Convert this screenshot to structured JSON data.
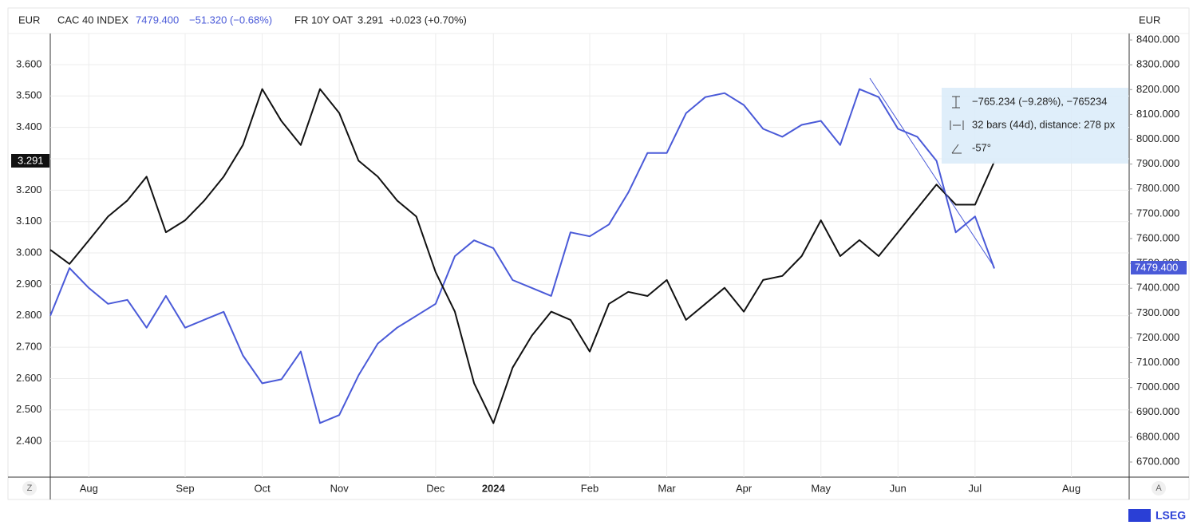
{
  "chart_data": {
    "type": "line",
    "y_unit": "EUR",
    "y2_unit": "EUR",
    "categories": [
      null,
      null,
      "Aug",
      null,
      null,
      null,
      null,
      "Sep",
      null,
      null,
      null,
      "Oct",
      null,
      null,
      null,
      "Nov",
      null,
      null,
      null,
      null,
      "Dec",
      null,
      null,
      "2024",
      null,
      null,
      null,
      null,
      "Feb",
      null,
      null,
      null,
      "Mar",
      null,
      null,
      null,
      "Apr",
      null,
      null,
      null,
      "May",
      null,
      null,
      null,
      "Jun",
      null,
      null,
      null,
      "Jul",
      null,
      null,
      null,
      null,
      "Aug",
      null,
      null,
      null
    ],
    "series": [
      {
        "name": "CAC 40 INDEX",
        "color": "#4a5ad8",
        "axis": "y2",
        "last_label": "7479.400",
        "change_label": "−51.320 (−0.68%)",
        "values": [
          7289,
          7481,
          7401,
          7337,
          7353,
          7241,
          7369,
          7241,
          7273,
          7305,
          7129,
          7017,
          7033,
          7145,
          6857,
          6889,
          7049,
          7177,
          7241,
          7289,
          7337,
          7529,
          7593,
          7561,
          7433,
          7401,
          7369,
          7625,
          7609,
          7657,
          7785,
          7945,
          7945,
          8105,
          8170,
          8186,
          8138,
          8042,
          8010,
          8058,
          8074,
          7977,
          8202,
          8170,
          8042,
          8010,
          7913,
          7625,
          7689,
          7479.4,
          null,
          null,
          null,
          null,
          null,
          null,
          null
        ]
      },
      {
        "name": "FR 10Y OAT",
        "color": "#111111",
        "last_label": "3.291",
        "change_label": "+0.023 (+0.70%)",
        "values": [
          3.01,
          2.965,
          3.04,
          3.116,
          3.167,
          3.243,
          3.066,
          3.104,
          3.167,
          3.243,
          3.344,
          3.522,
          3.42,
          3.344,
          3.522,
          3.446,
          3.294,
          3.243,
          3.167,
          3.116,
          2.939,
          2.813,
          2.585,
          2.458,
          2.635,
          2.737,
          2.813,
          2.787,
          2.686,
          2.838,
          2.876,
          2.863,
          2.914,
          2.787,
          2.838,
          2.889,
          2.813,
          2.914,
          2.927,
          2.99,
          3.104,
          2.99,
          3.041,
          2.99,
          3.066,
          3.142,
          3.218,
          3.154,
          3.154,
          3.291,
          null,
          null,
          null,
          null,
          null,
          null,
          null
        ]
      }
    ],
    "ylim": [
      2.286,
      3.699
    ],
    "yticks": [
      {
        "value": 2.4,
        "label": "2.400"
      },
      {
        "value": 2.5,
        "label": "2.500"
      },
      {
        "value": 2.6,
        "label": "2.600"
      },
      {
        "value": 2.7,
        "label": "2.700"
      },
      {
        "value": 2.8,
        "label": "2.800"
      },
      {
        "value": 2.9,
        "label": "2.900"
      },
      {
        "value": 3.0,
        "label": "3.000"
      },
      {
        "value": 3.1,
        "label": "3.100"
      },
      {
        "value": 3.2,
        "label": "3.200"
      },
      {
        "value": 3.3,
        "label": "3.300"
      },
      {
        "value": 3.4,
        "label": "3.400"
      },
      {
        "value": 3.5,
        "label": "3.500"
      },
      {
        "value": 3.6,
        "label": "3.600"
      }
    ],
    "y2lim": [
      6639,
      8426
    ],
    "y2ticks": [
      {
        "value": 6700,
        "label": "6700.000"
      },
      {
        "value": 6800,
        "label": "6800.000"
      },
      {
        "value": 6900,
        "label": "6900.000"
      },
      {
        "value": 7000,
        "label": "7000.000"
      },
      {
        "value": 7100,
        "label": "7100.000"
      },
      {
        "value": 7200,
        "label": "7200.000"
      },
      {
        "value": 7300,
        "label": "7300.000"
      },
      {
        "value": 7400,
        "label": "7400.000"
      },
      {
        "value": 7500,
        "label": "7500.000"
      },
      {
        "value": 7600,
        "label": "7600.000"
      },
      {
        "value": 7700,
        "label": "7700.000"
      },
      {
        "value": 7800,
        "label": "7800.000"
      },
      {
        "value": 7900,
        "label": "7900.000"
      },
      {
        "value": 8000,
        "label": "8000.000"
      },
      {
        "value": 8100,
        "label": "8100.000"
      },
      {
        "value": 8200,
        "label": "8200.000"
      },
      {
        "value": 8300,
        "label": "8300.000"
      },
      {
        "value": 8400,
        "label": "8400.000"
      }
    ],
    "grid": true,
    "annotations": [
      "−765.234 (−9.28%), −765234",
      "32 bars (44d), distance: 278 px",
      "-57°"
    ],
    "buttons": [
      "Z",
      "A"
    ],
    "brand": "LSEG"
  }
}
